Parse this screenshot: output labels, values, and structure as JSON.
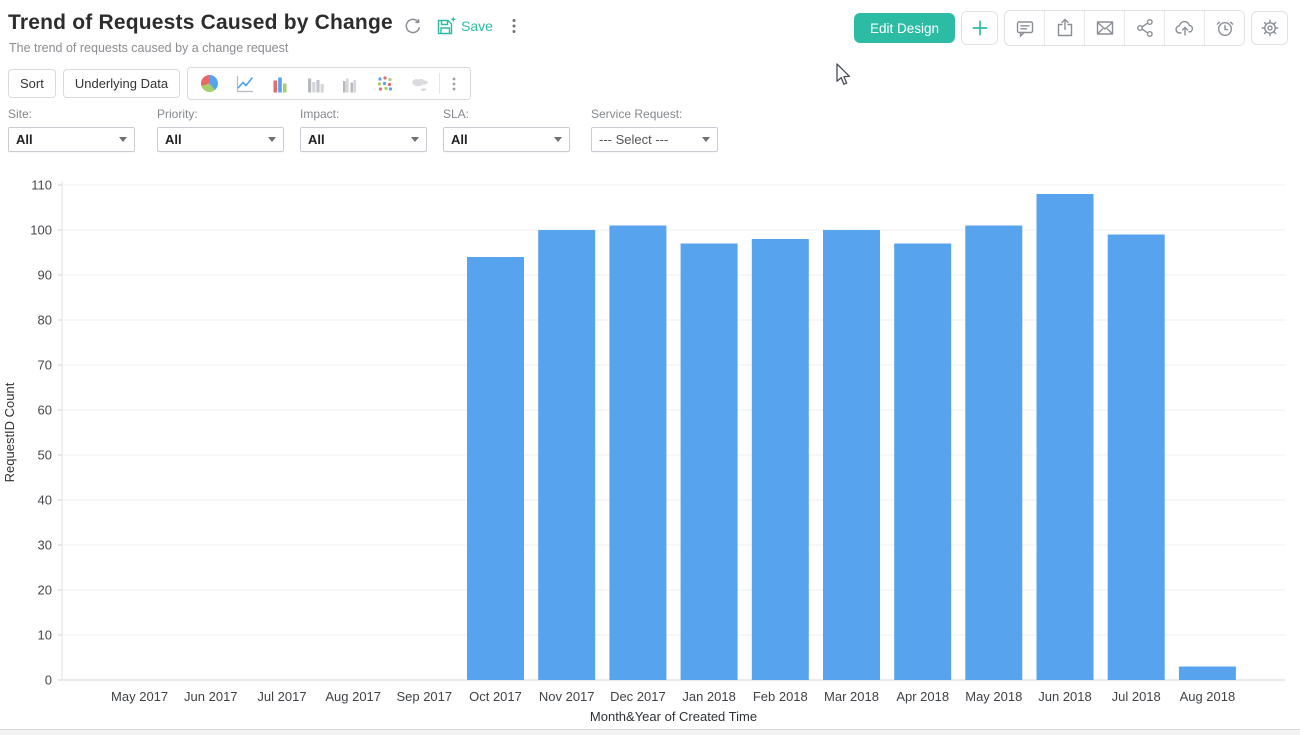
{
  "header": {
    "title": "Trend of Requests Caused by Change",
    "subtitle": "The trend of requests caused by a change request",
    "save_label": "Save",
    "accent_color": "#2CBCA4",
    "inline_icons": [
      "refresh-icon",
      "save-icon",
      "kebab-menu-icon"
    ],
    "actions": {
      "edit_design_label": "Edit Design",
      "icons": [
        "add-icon",
        "comment-icon",
        "export-icon",
        "email-icon",
        "share-icon",
        "cloud-upload-icon",
        "schedule-icon",
        "settings-icon"
      ]
    }
  },
  "toolbar": {
    "sort_label": "Sort",
    "underlying_data_label": "Underlying Data",
    "chart_type_icons": [
      "pie-chart-icon",
      "line-chart-icon",
      "bar-chart-icon",
      "stacked-bar-chart-icon",
      "grouped-bar-chart-icon",
      "scatter-chart-icon",
      "map-chart-icon",
      "more-chart-types-icon"
    ]
  },
  "filters": [
    {
      "label": "Site:",
      "value": "All"
    },
    {
      "label": "Priority:",
      "value": "All"
    },
    {
      "label": "Impact:",
      "value": "All"
    },
    {
      "label": "SLA:",
      "value": "All"
    },
    {
      "label": "Service Request:",
      "value": "--- Select ---"
    }
  ],
  "chart_data": {
    "type": "bar",
    "title": "",
    "xlabel": "Month&Year of Created Time",
    "ylabel": "RequestID Count",
    "categories": [
      "May 2017",
      "Jun 2017",
      "Jul 2017",
      "Aug 2017",
      "Sep 2017",
      "Oct 2017",
      "Nov 2017",
      "Dec 2017",
      "Jan 2018",
      "Feb 2018",
      "Mar 2018",
      "Apr 2018",
      "May 2018",
      "Jun 2018",
      "Jul 2018",
      "Aug 2018"
    ],
    "values": [
      0,
      0,
      0,
      0,
      0,
      94,
      100,
      101,
      97,
      98,
      100,
      97,
      101,
      108,
      99,
      3
    ],
    "ylim": [
      0,
      110
    ],
    "ytick_step": 10,
    "grid": "horizontal",
    "legend": "none",
    "bar_color": "#57A3EE"
  }
}
